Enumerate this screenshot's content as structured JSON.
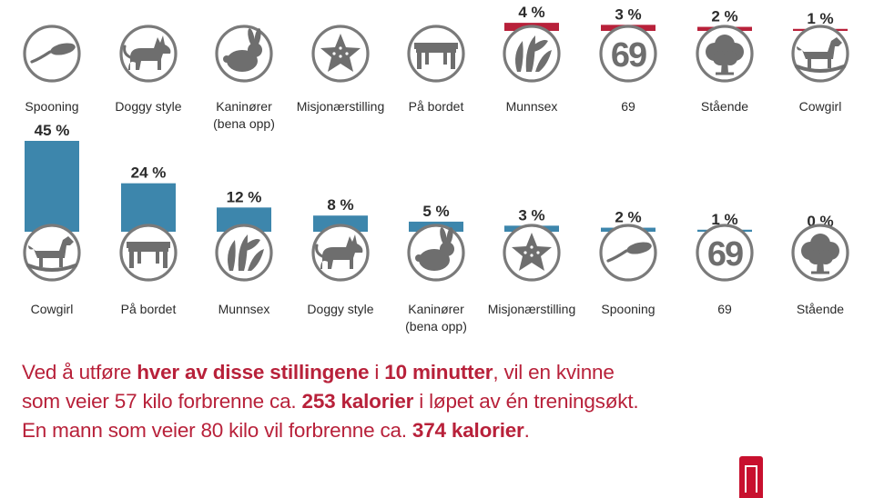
{
  "colors": {
    "men": "#b8213a",
    "women": "#3d86ac",
    "icon": "#6e6e6e",
    "circle_stroke": "#7a7a7a",
    "accent_text": "#b8213a"
  },
  "chart_data": [
    {
      "type": "bar",
      "categories": [
        "Spooning",
        "Doggy style",
        "Kaninører\n(bena opp)",
        "Misjonærstilling",
        "På bordet",
        "Munnsex",
        "69",
        "Stående",
        "Cowgirl"
      ],
      "icons": [
        "spoon-icon",
        "dog-icon",
        "rabbit-icon",
        "starfish-icon",
        "table-icon",
        "plant-icon",
        "sixtynine-icon",
        "tree-icon",
        "rocking-horse-icon"
      ],
      "values": [
        null,
        null,
        null,
        null,
        null,
        4,
        3,
        2,
        1
      ],
      "value_labels": [
        "",
        "",
        "",
        "",
        "",
        "4 %",
        "3 %",
        "2 %",
        "1 %"
      ],
      "ylim": [
        0,
        45
      ],
      "color": "#b8213a"
    },
    {
      "type": "bar",
      "categories": [
        "Cowgirl",
        "På bordet",
        "Munnsex",
        "Doggy style",
        "Kaninører\n(bena opp)",
        "Misjonærstilling",
        "Spooning",
        "69",
        "Stående"
      ],
      "icons": [
        "rocking-horse-icon",
        "table-icon",
        "plant-icon",
        "dog-icon",
        "rabbit-icon",
        "starfish-icon",
        "spoon-icon",
        "sixtynine-icon",
        "tree-icon"
      ],
      "values": [
        45,
        24,
        12,
        8,
        5,
        3,
        2,
        1,
        0
      ],
      "value_labels": [
        "45 %",
        "24 %",
        "12 %",
        "8 %",
        "5 %",
        "3 %",
        "2 %",
        "1 %",
        "0 %"
      ],
      "ylim": [
        0,
        45
      ],
      "color": "#3d86ac"
    }
  ],
  "caption": {
    "line1_a": "Ved å utføre ",
    "line1_b": "hver av disse stillingene",
    "line1_c": " i ",
    "line1_d": "10 minutter",
    "line1_e": ", vil en kvinne",
    "line2_a": "som veier 57 kilo forbrenne ca. ",
    "line2_b": "253 kalorier",
    "line2_c": " i løpet av én treningsøkt.",
    "line3_a": "En mann som veier 80 kilo vil forbrenne ca. ",
    "line3_b": "374 kalorier",
    "line3_c": "."
  }
}
